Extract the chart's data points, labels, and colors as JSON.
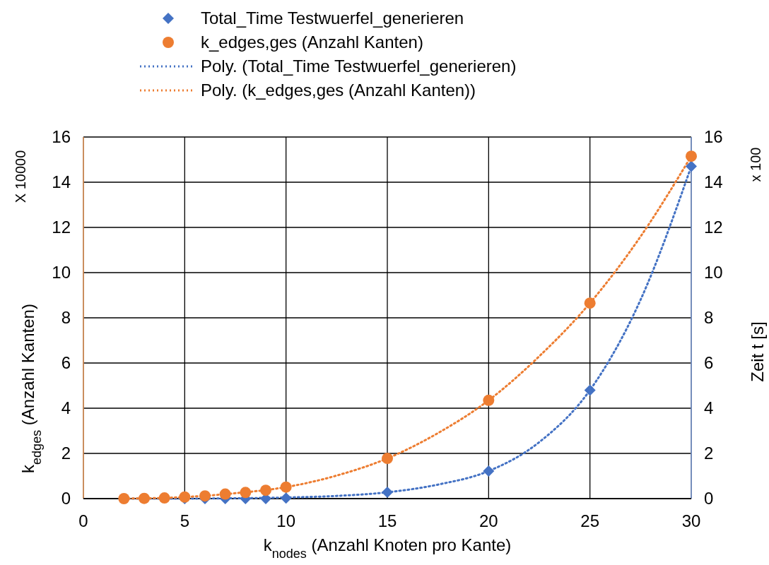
{
  "chart_data": {
    "type": "scatter",
    "xlabel": "k$_{nodes}$ (Anzahl Knoten pro Kante)",
    "ylabel": "k$_{edges}$ (Anzahl Kanten)",
    "y2label": "Zeit t [s]",
    "annotations": [
      "X 10000",
      "x 100"
    ],
    "xlim": [
      0,
      30
    ],
    "xticks": [
      0,
      5,
      10,
      15,
      20,
      25,
      30
    ],
    "ylim": [
      0,
      16
    ],
    "yticks": [
      0,
      2,
      4,
      6,
      8,
      10,
      12,
      14,
      16
    ],
    "y2lim": [
      0,
      16
    ],
    "y2ticks": [
      0,
      2,
      4,
      6,
      8,
      10,
      12,
      14,
      16
    ],
    "grid": true,
    "legend": "top",
    "series": [
      {
        "name": "Total_Time Testwuerfel_generieren",
        "color": "#4472c4",
        "marker": "diamond",
        "axis": "y2",
        "x": [
          5,
          6,
          7,
          8,
          9,
          10,
          15,
          20,
          25,
          30
        ],
        "values": [
          0,
          0,
          0,
          0,
          0,
          0.02,
          0.28,
          1.22,
          4.8,
          14.7
        ]
      },
      {
        "name": "k_edges,ges (Anzahl Kanten)",
        "color": "#ed7d31",
        "marker": "circle",
        "x": [
          2,
          3,
          4,
          5,
          6,
          7,
          8,
          9,
          10,
          15,
          20,
          25,
          30
        ],
        "values": [
          0,
          0.01,
          0.03,
          0.07,
          0.12,
          0.2,
          0.27,
          0.37,
          0.51,
          1.78,
          4.35,
          8.65,
          15.15
        ]
      },
      {
        "name": "Poly. (Total_Time Testwuerfel_generieren)",
        "color": "#4472c4",
        "type": "line",
        "marker": "none",
        "line_style": "dotted",
        "axis": "y2",
        "x": [
          2,
          5,
          8,
          10,
          12.5,
          15,
          17.5,
          20,
          22.5,
          25,
          27.5,
          30
        ],
        "values": [
          0,
          0,
          0.02,
          0.05,
          0.12,
          0.28,
          0.62,
          1.22,
          2.5,
          4.8,
          8.8,
          14.7
        ]
      },
      {
        "name": "Poly. (k_edges,ges (Anzahl Kanten))",
        "color": "#ed7d31",
        "type": "line",
        "marker": "none",
        "line_style": "dotted",
        "x": [
          2,
          5,
          7.5,
          10,
          12.5,
          15,
          17.5,
          20,
          22.5,
          25,
          27.5,
          30
        ],
        "values": [
          0,
          0.07,
          0.24,
          0.51,
          1.02,
          1.78,
          2.9,
          4.35,
          6.3,
          8.65,
          11.6,
          15.15
        ]
      }
    ]
  }
}
